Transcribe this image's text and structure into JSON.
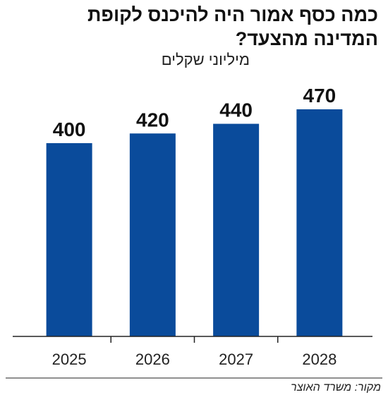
{
  "title_line1": "כמה כסף אמור היה להיכנס לקופת",
  "title_line2": "המדינה מהצעד?",
  "subtitle": "מיליוני שקלים",
  "source": "מקור: משרד האוצר",
  "colors": {
    "bar": "#0a4b9b",
    "axis": "#222222"
  },
  "chart_data": {
    "type": "bar",
    "categories": [
      "2025",
      "2026",
      "2027",
      "2028"
    ],
    "values": [
      400,
      420,
      440,
      470
    ],
    "title": "כמה כסף אמור היה להיכנס לקופת המדינה מהצעד?",
    "ylabel": "מיליוני שקלים",
    "xlabel": "",
    "ylim": [
      0,
      470
    ],
    "grid": false,
    "data_labels": true
  }
}
